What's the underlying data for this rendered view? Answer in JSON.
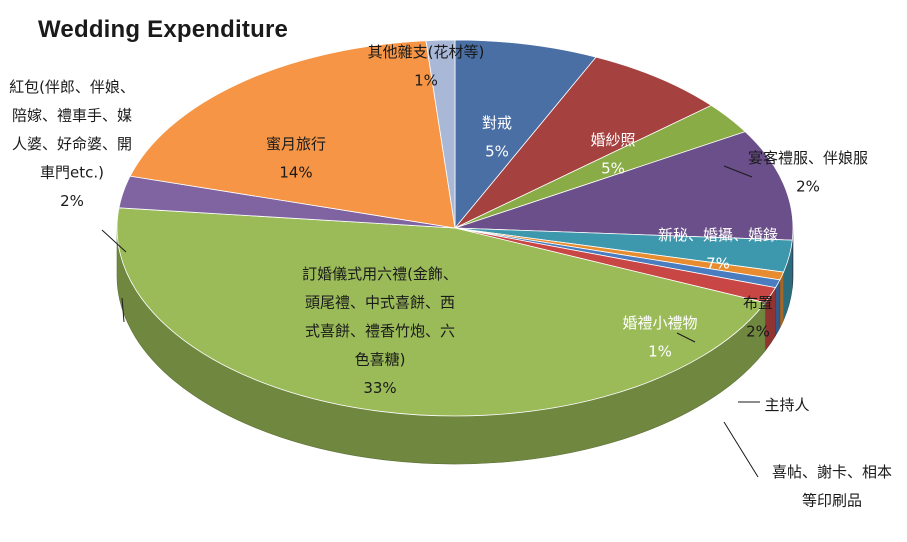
{
  "chart_data": {
    "type": "pie",
    "title": "Wedding Expenditure",
    "slices": [
      {
        "name": "對戒",
        "value": 5,
        "percent_label": "5%",
        "color": "#4a6fa5"
      },
      {
        "name": "婚紗照",
        "value": 5,
        "percent_label": "5%",
        "color": "#a5413f"
      },
      {
        "name": "宴客禮服、伴娘服",
        "value": 2,
        "percent_label": "2%",
        "color": "#8aac47"
      },
      {
        "name": "新秘、婚攝、婚錄",
        "value": 7,
        "percent_label": "7%",
        "color": "#6b4f8a"
      },
      {
        "name": "布置",
        "value": 2,
        "percent_label": "2%",
        "color": "#3d98ad"
      },
      {
        "name": "主持人",
        "value": 0.5,
        "percent_label": "",
        "color": "#e88d2f"
      },
      {
        "name": "喜帖、謝卡、相本等印刷品",
        "value": 0.5,
        "percent_label": "",
        "color": "#4a7dbf"
      },
      {
        "name": "婚禮小禮物",
        "value": 1,
        "percent_label": "1%",
        "color": "#c84744"
      },
      {
        "name": "訂婚儀式用六禮(金飾、頭尾禮、中式喜餅、西式喜餅、禮香竹炮、六色喜糖)",
        "value": 33,
        "percent_label": "33%",
        "color": "#9bbb59"
      },
      {
        "name": "紅包(伴郎、伴娘、陪嫁、禮車手、媒人婆、好命婆、開車門etc.)",
        "value": 2,
        "percent_label": "2%",
        "color": "#8064a2"
      },
      {
        "name": "蜜月旅行",
        "value": 14,
        "percent_label": "14%",
        "color": "#f59545"
      },
      {
        "name": "其他雜支(花材等)",
        "value": 1,
        "percent_label": "1%",
        "color": "#aab8d8"
      }
    ],
    "legend": "none"
  },
  "labels": [
    {
      "key": "ring",
      "lines": [
        "對戒",
        "5%"
      ],
      "color": "#ffffff"
    },
    {
      "key": "photo",
      "lines": [
        "婚紗照",
        "5%"
      ],
      "color": "#ffffff"
    },
    {
      "key": "dress",
      "lines": [
        "宴客禮服、伴娘服",
        "2%"
      ],
      "color": "#1a1a1a"
    },
    {
      "key": "makeup",
      "lines": [
        "新秘、婚攝、婚錄",
        "7%"
      ],
      "color": "#ffffff"
    },
    {
      "key": "decor",
      "lines": [
        "布置",
        "2%"
      ],
      "color": "#1a1a1a"
    },
    {
      "key": "host",
      "lines": [
        "主持人"
      ],
      "color": "#1a1a1a"
    },
    {
      "key": "print",
      "lines": [
        "喜帖、謝卡、相本",
        "等印刷品"
      ],
      "color": "#1a1a1a"
    },
    {
      "key": "gift",
      "lines": [
        "婚禮小禮物",
        "1%"
      ],
      "color": "#ffffff"
    },
    {
      "key": "engage",
      "lines": [
        "訂婚儀式用六禮(金飾、",
        "頭尾禮、中式喜餅、西",
        "式喜餅、禮香竹炮、六",
        "色喜糖)",
        "33%"
      ],
      "color": "#1a1a1a"
    },
    {
      "key": "redenv",
      "lines": [
        "紅包(伴郎、伴娘、",
        "陪嫁、禮車手、媒",
        "人婆、好命婆、開",
        "車門etc.)",
        "2%"
      ],
      "color": "#1a1a1a"
    },
    {
      "key": "honey",
      "lines": [
        "蜜月旅行",
        "14%"
      ],
      "color": "#1a1a1a"
    },
    {
      "key": "misc",
      "lines": [
        "其他雜支(花材等)",
        "1%"
      ],
      "color": "#1a1a1a"
    }
  ]
}
